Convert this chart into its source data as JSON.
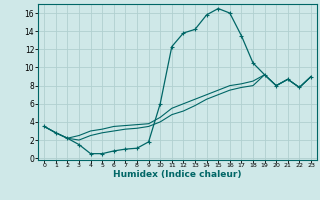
{
  "xlabel": "Humidex (Indice chaleur)",
  "ylabel": "",
  "background_color": "#cfe8e8",
  "grid_color": "#b0d0d0",
  "line_color": "#006666",
  "xlim": [
    -0.5,
    23.5
  ],
  "ylim": [
    -0.2,
    17.0
  ],
  "xticks": [
    0,
    1,
    2,
    3,
    4,
    5,
    6,
    7,
    8,
    9,
    10,
    11,
    12,
    13,
    14,
    15,
    16,
    17,
    18,
    19,
    20,
    21,
    22,
    23
  ],
  "yticks": [
    0,
    2,
    4,
    6,
    8,
    10,
    12,
    14,
    16
  ],
  "curve1_x": [
    0,
    1,
    2,
    3,
    4,
    5,
    6,
    7,
    8,
    9,
    10,
    11,
    12,
    13,
    14,
    15,
    16,
    17,
    18,
    19,
    20,
    21,
    22,
    23
  ],
  "curve1_y": [
    3.5,
    2.8,
    2.2,
    1.5,
    0.5,
    0.5,
    0.8,
    1.0,
    1.1,
    1.8,
    6.0,
    12.3,
    13.8,
    14.2,
    15.8,
    16.5,
    16.0,
    13.5,
    10.5,
    9.2,
    8.0,
    8.7,
    7.8,
    9.0
  ],
  "curve2_x": [
    0,
    1,
    2,
    3,
    4,
    5,
    6,
    7,
    8,
    9,
    10,
    11,
    12,
    13,
    14,
    15,
    16,
    17,
    18,
    19,
    20,
    21,
    22,
    23
  ],
  "curve2_y": [
    3.5,
    2.8,
    2.2,
    2.5,
    3.0,
    3.2,
    3.5,
    3.6,
    3.7,
    3.8,
    4.5,
    5.5,
    6.0,
    6.5,
    7.0,
    7.5,
    8.0,
    8.2,
    8.5,
    9.2,
    8.0,
    8.7,
    7.8,
    9.0
  ],
  "curve3_x": [
    0,
    1,
    2,
    3,
    4,
    5,
    6,
    7,
    8,
    9,
    10,
    11,
    12,
    13,
    14,
    15,
    16,
    17,
    18,
    19,
    20,
    21,
    22,
    23
  ],
  "curve3_y": [
    3.5,
    2.8,
    2.2,
    2.0,
    2.5,
    2.8,
    3.0,
    3.2,
    3.3,
    3.5,
    4.0,
    4.8,
    5.2,
    5.8,
    6.5,
    7.0,
    7.5,
    7.8,
    8.0,
    9.2,
    8.0,
    8.7,
    7.8,
    9.0
  ]
}
